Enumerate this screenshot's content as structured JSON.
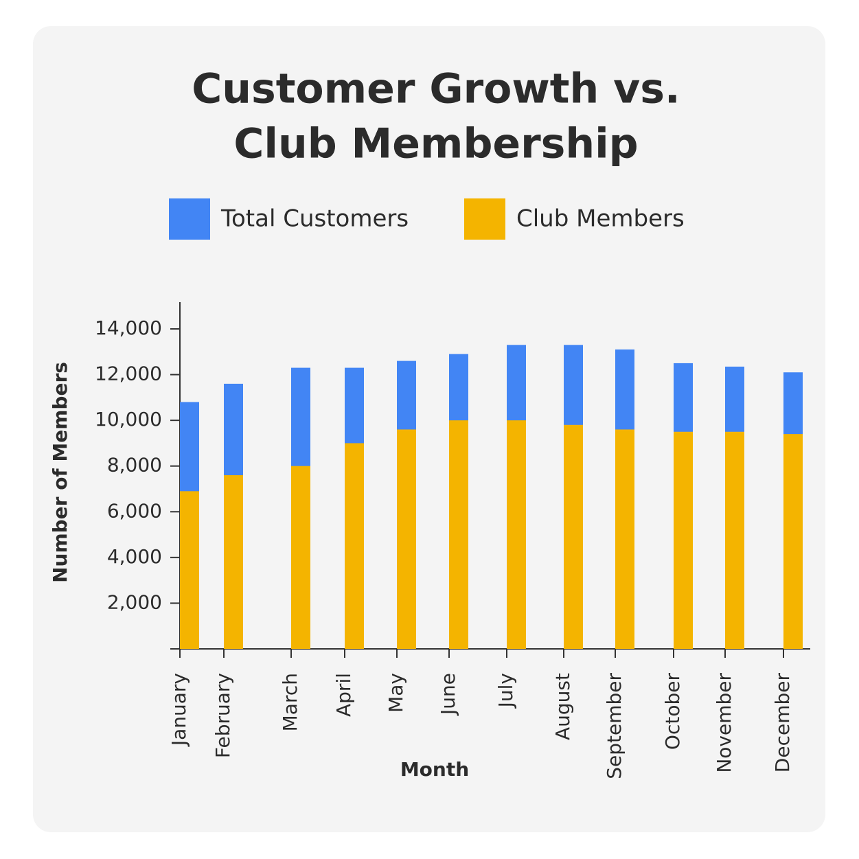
{
  "chart_data": {
    "type": "bar",
    "title": [
      "Customer Growth vs.",
      "Club Membership"
    ],
    "x_label": "Month",
    "y_label": "Number of Members",
    "categories": [
      "January",
      "February",
      "March",
      "April",
      "May",
      "June",
      "July",
      "August",
      "September",
      "October",
      "November",
      "December"
    ],
    "series": [
      {
        "name": "Total Customers",
        "color": "#4285f4",
        "values": [
          10800,
          11600,
          12300,
          12300,
          12600,
          12900,
          13300,
          13300,
          13100,
          12500,
          12350,
          12100
        ]
      },
      {
        "name": "Club Members",
        "color": "#f4b400",
        "values": [
          6900,
          7600,
          8000,
          9000,
          9600,
          10000,
          10000,
          9800,
          9600,
          9500,
          9500,
          9400
        ]
      }
    ],
    "ylim": [
      0,
      15200
    ],
    "yticks": [
      {
        "value": 2000,
        "label": "2,000"
      },
      {
        "value": 4000,
        "label": "4,000"
      },
      {
        "value": 6000,
        "label": "6,000"
      },
      {
        "value": 8000,
        "label": "8,000"
      },
      {
        "value": 10000,
        "label": "10,000"
      },
      {
        "value": 12000,
        "label": "12,000"
      },
      {
        "value": 14000,
        "label": "14,000"
      }
    ],
    "grid": false
  }
}
